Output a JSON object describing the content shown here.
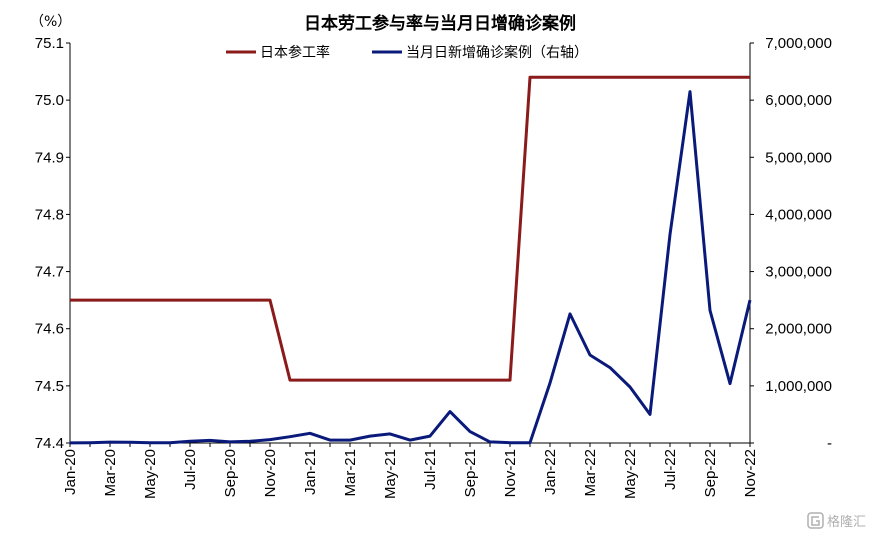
{
  "chart_data": {
    "type": "line",
    "title": "日本劳工参与率与当月日增确诊案例",
    "left_axis": {
      "unit_label": "（%）",
      "ylim": [
        74.4,
        75.1
      ],
      "ticks": [
        74.4,
        74.5,
        74.6,
        74.7,
        74.8,
        74.9,
        75.0,
        75.1
      ],
      "tick_labels": [
        "74.4",
        "74.5",
        "74.6",
        "74.7",
        "74.8",
        "74.9",
        "75.0",
        "75.1"
      ]
    },
    "right_axis": {
      "ylim": [
        0,
        7000000
      ],
      "ticks": [
        0,
        1000000,
        2000000,
        3000000,
        4000000,
        5000000,
        6000000,
        7000000
      ],
      "tick_labels": [
        "-",
        "1,000,000",
        "2,000,000",
        "3,000,000",
        "4,000,000",
        "5,000,000",
        "6,000,000",
        "7,000,000"
      ]
    },
    "x": [
      "Jan-20",
      "Feb-20",
      "Mar-20",
      "Apr-20",
      "May-20",
      "Jun-20",
      "Jul-20",
      "Aug-20",
      "Sep-20",
      "Oct-20",
      "Nov-20",
      "Dec-20",
      "Jan-21",
      "Feb-21",
      "Mar-21",
      "Apr-21",
      "May-21",
      "Jun-21",
      "Jul-21",
      "Aug-21",
      "Sep-21",
      "Oct-21",
      "Nov-21",
      "Dec-21",
      "Jan-22",
      "Feb-22",
      "Mar-22",
      "Apr-22",
      "May-22",
      "Jun-22",
      "Jul-22",
      "Aug-22",
      "Sep-22",
      "Oct-22",
      "Nov-22"
    ],
    "x_tick_labels": [
      "Jan-20",
      "Mar-20",
      "May-20",
      "Jul-20",
      "Sep-20",
      "Nov-20",
      "Jan-21",
      "Mar-21",
      "May-21",
      "Jul-21",
      "Sep-21",
      "Nov-21",
      "Jan-22",
      "Mar-22",
      "May-22",
      "Jul-22",
      "Sep-22",
      "Nov-22"
    ],
    "series": [
      {
        "name": "日本参工率",
        "axis": "left",
        "color": "#8b1a1a",
        "values": [
          74.65,
          74.65,
          74.65,
          74.65,
          74.65,
          74.65,
          74.65,
          74.65,
          74.65,
          74.65,
          74.65,
          74.51,
          74.51,
          74.51,
          74.51,
          74.51,
          74.51,
          74.51,
          74.51,
          74.51,
          74.51,
          74.51,
          74.51,
          75.04,
          75.04,
          75.04,
          75.04,
          75.04,
          75.04,
          75.04,
          75.04,
          75.04,
          75.04,
          75.04,
          75.04
        ]
      },
      {
        "name": "当月日新增确诊案例（右轴）",
        "axis": "right",
        "color": "#0a1a7a",
        "values": [
          1000,
          5000,
          15000,
          12000,
          3000,
          5000,
          30000,
          45000,
          20000,
          30000,
          60000,
          110000,
          170000,
          50000,
          50000,
          120000,
          160000,
          50000,
          120000,
          550000,
          200000,
          20000,
          5000,
          5000,
          1050000,
          2260000,
          1540000,
          1320000,
          980000,
          500000,
          3650000,
          6150000,
          2320000,
          1040000,
          2500000
        ]
      }
    ],
    "grid": false,
    "legend_position": "top-center"
  },
  "watermark": {
    "text": "格隆汇",
    "icon": "gelonghui-logo-icon"
  }
}
